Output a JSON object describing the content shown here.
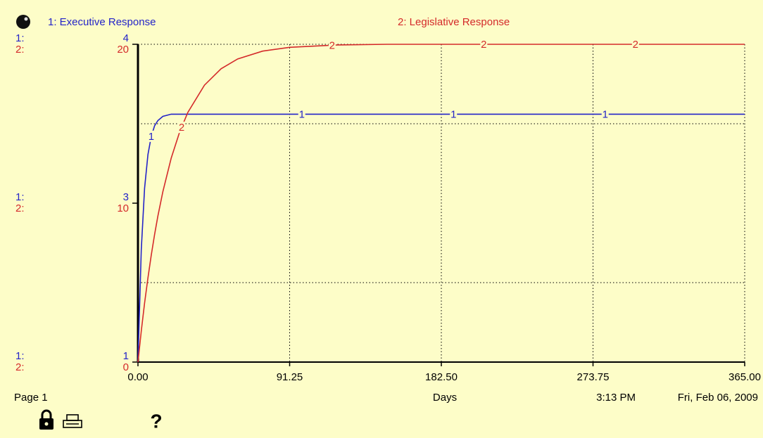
{
  "chart_data": {
    "type": "line",
    "x_label": "Days",
    "xlim": [
      0,
      365
    ],
    "xticks": [
      {
        "value": 0,
        "label": "0.00"
      },
      {
        "value": 91.25,
        "label": "91.25"
      },
      {
        "value": 182.5,
        "label": "182.50"
      },
      {
        "value": 273.75,
        "label": "273.75"
      },
      {
        "value": 365,
        "label": "365.00"
      }
    ],
    "ylim": [
      1,
      4
    ],
    "yticks": [
      1,
      {
        "value": 2.5,
        "label": "3"
      },
      4
    ],
    "y2lim": [
      0,
      20
    ],
    "y2ticks": [
      0,
      10,
      20
    ],
    "y2grid": [
      5,
      15,
      20
    ],
    "grid": true,
    "series": [
      {
        "name": "1: Executive Response",
        "axis_tag": "1:",
        "marker_label": "1",
        "color": "#2323c8",
        "axis": "y",
        "x": [
          0,
          2,
          4,
          6,
          8,
          10,
          12,
          15,
          20,
          25,
          30,
          40,
          50,
          60,
          75,
          91.25,
          120,
          150,
          182.5,
          220,
          273.75,
          320,
          365
        ],
        "values": [
          1,
          2.06,
          2.64,
          2.96,
          3.13,
          3.23,
          3.28,
          3.32,
          3.34,
          3.34,
          3.34,
          3.34,
          3.34,
          3.34,
          3.34,
          3.34,
          3.34,
          3.34,
          3.34,
          3.34,
          3.34,
          3.34,
          3.34
        ]
      },
      {
        "name": "2: Legislative Response",
        "axis_tag": "2:",
        "marker_label": "2",
        "color": "#d42a2a",
        "axis": "y2",
        "x": [
          0,
          2,
          4,
          6,
          8,
          10,
          12,
          15,
          20,
          25,
          30,
          40,
          50,
          60,
          75,
          91.25,
          120,
          150,
          182.5,
          220,
          273.75,
          320,
          365
        ],
        "values": [
          0,
          1.95,
          3.71,
          5.3,
          6.73,
          8.02,
          9.19,
          10.73,
          12.83,
          14.45,
          15.71,
          17.43,
          18.46,
          19.08,
          19.57,
          19.81,
          19.96,
          20,
          20,
          20,
          20,
          20,
          20
        ]
      }
    ],
    "page_label": "Page 1",
    "time": "3:13 PM",
    "date": "Fri, Feb 06, 2009",
    "help_label": "?"
  }
}
